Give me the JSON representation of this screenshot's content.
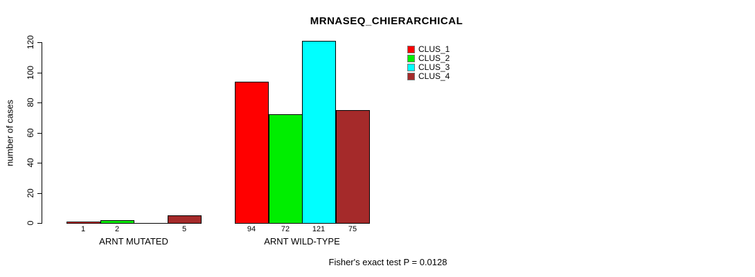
{
  "chart_data": {
    "type": "bar",
    "title": "MRNASEQ_CHIERARCHICAL",
    "ylabel": "number of cases",
    "xlabel": "",
    "ylim": [
      0,
      120
    ],
    "yticks": [
      0,
      20,
      40,
      60,
      80,
      100,
      120
    ],
    "grid": false,
    "legend_position": "top-right",
    "categories": [
      "ARNT MUTATED",
      "ARNT WILD-TYPE"
    ],
    "series": [
      {
        "name": "CLUS_1",
        "color": "#ff0000",
        "values": [
          1,
          94
        ]
      },
      {
        "name": "CLUS_2",
        "color": "#00ee00",
        "values": [
          2,
          72
        ]
      },
      {
        "name": "CLUS_3",
        "color": "#00ffff",
        "values": [
          0,
          121
        ]
      },
      {
        "name": "CLUS_4",
        "color": "#a52a2a",
        "values": [
          5,
          75
        ]
      }
    ],
    "bar_count_labels": [
      [
        "1",
        "2",
        "",
        "5"
      ],
      [
        "94",
        "72",
        "121",
        "75"
      ]
    ],
    "footer": "Fisher's exact test P = 0.0128"
  }
}
